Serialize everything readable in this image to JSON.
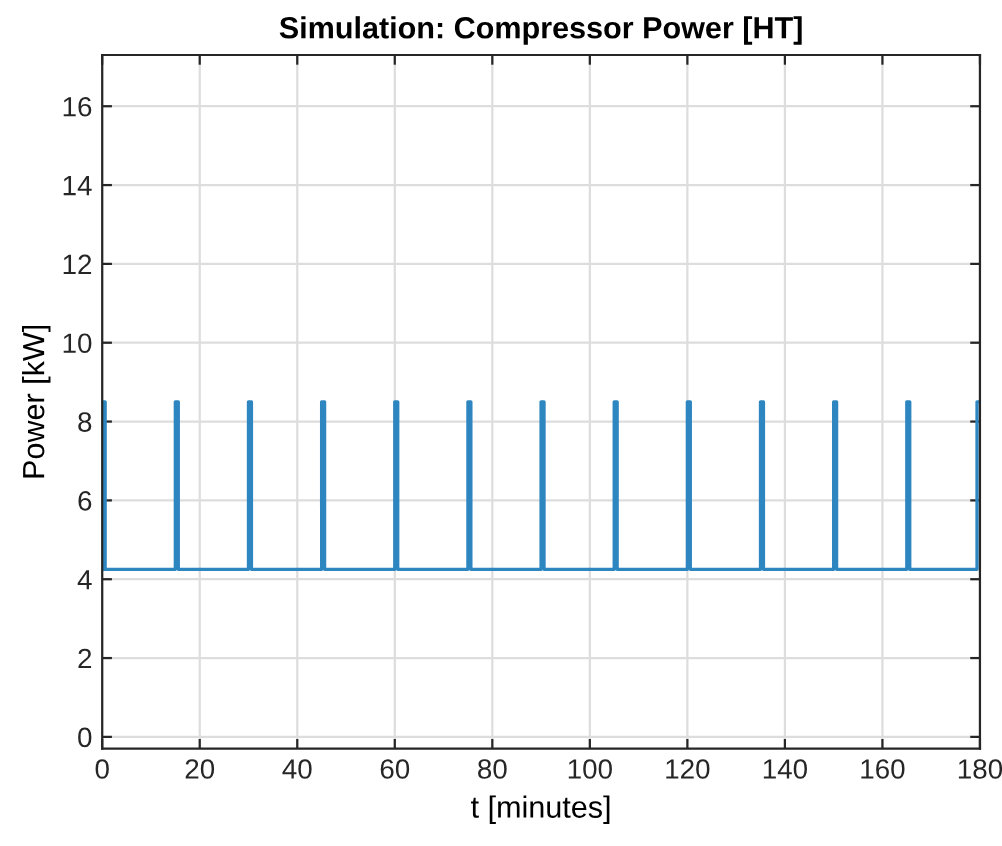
{
  "chart_data": {
    "type": "line",
    "title": "Simulation: Compressor Power [HT]",
    "xlabel": "t [minutes]",
    "ylabel": "Power [kW]",
    "series": [
      {
        "color": "#2e86c1",
        "x": [
          0,
          0,
          0.6,
          0.6,
          15,
          15,
          15.6,
          15.6,
          30,
          30,
          30.6,
          30.6,
          45,
          45,
          45.6,
          45.6,
          60,
          60,
          60.6,
          60.6,
          75,
          75,
          75.6,
          75.6,
          90,
          90,
          90.6,
          90.6,
          105,
          105,
          105.6,
          105.6,
          120,
          120,
          120.6,
          120.6,
          135,
          135,
          135.6,
          135.6,
          150,
          150,
          150.6,
          150.6,
          165,
          165,
          165.6,
          165.6,
          179.4,
          179.4,
          180
        ],
        "values": [
          4.25,
          8.5,
          8.5,
          4.25,
          4.25,
          8.5,
          8.5,
          4.25,
          4.25,
          8.5,
          8.5,
          4.25,
          4.25,
          8.5,
          8.5,
          4.25,
          4.25,
          8.5,
          8.5,
          4.25,
          4.25,
          8.5,
          8.5,
          4.25,
          4.25,
          8.5,
          8.5,
          4.25,
          4.25,
          8.5,
          8.5,
          4.25,
          4.25,
          8.5,
          8.5,
          4.25,
          4.25,
          8.5,
          8.5,
          4.25,
          4.25,
          8.5,
          8.5,
          4.25,
          4.25,
          8.5,
          8.5,
          4.25,
          4.25,
          8.5,
          8.5
        ]
      }
    ],
    "xlim": [
      0,
      180
    ],
    "xticks": [
      0,
      20,
      40,
      60,
      80,
      100,
      120,
      140,
      160,
      180
    ],
    "ylim": [
      -0.3,
      17.3
    ],
    "yticks": [
      0,
      2,
      4,
      6,
      8,
      10,
      12,
      14,
      16
    ],
    "grid": true,
    "line_style": "solid"
  }
}
